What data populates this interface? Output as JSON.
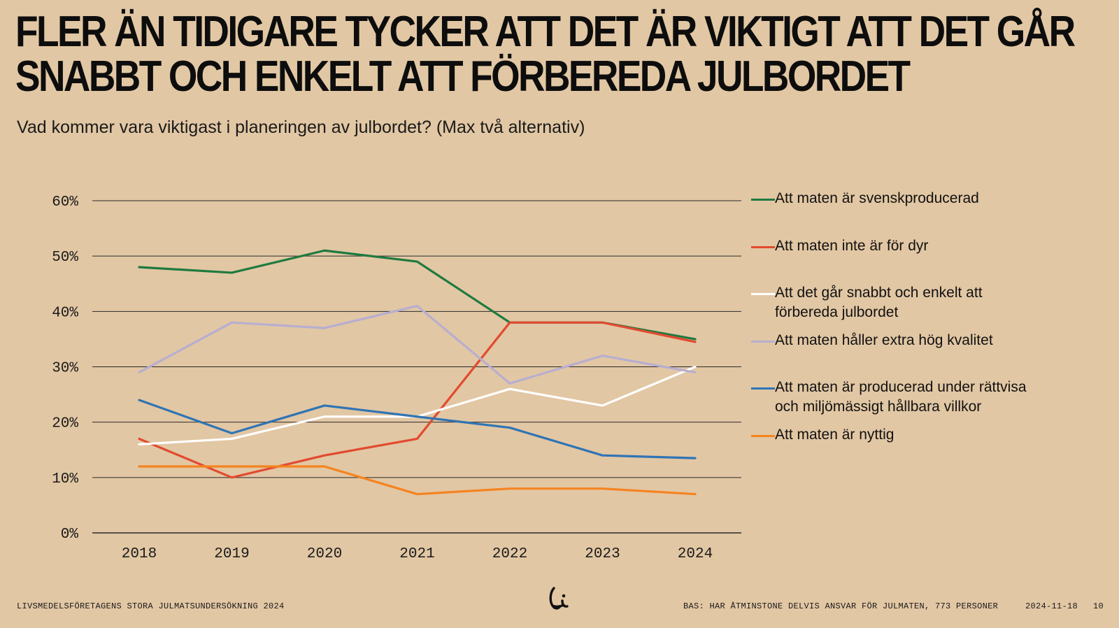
{
  "title_lines": [
    "FLER ÄN TIDIGARE TYCKER ATT DET ÄR VIKTIGT ATT DET GÅR",
    "SNABBT OCH ENKELT ATT FÖRBEREDA JULBORDET"
  ],
  "subtitle": "Vad kommer vara viktigast i planeringen av julbordet? (Max två alternativ)",
  "chart_data": {
    "type": "line",
    "x": [
      "2018",
      "2019",
      "2020",
      "2021",
      "2022",
      "2023",
      "2024"
    ],
    "ylim": [
      0,
      60
    ],
    "yticks": [
      "0%",
      "10%",
      "20%",
      "30%",
      "40%",
      "50%",
      "60%"
    ],
    "ytick_values": [
      0,
      10,
      20,
      30,
      40,
      50,
      60
    ],
    "grid": true,
    "legend_position": "right",
    "series": [
      {
        "name": "Att maten är svenskproducerad",
        "color": "#1f7a3f",
        "values": [
          48,
          47,
          51,
          49,
          38,
          38,
          35
        ]
      },
      {
        "name": "Att maten inte är för dyr",
        "color": "#e24a30",
        "values": [
          17,
          10,
          14,
          17,
          38,
          38,
          34.5
        ]
      },
      {
        "name": "Att det går snabbt och enkelt att förbereda julbordet",
        "color": "#ffffff",
        "values": [
          16,
          17,
          21,
          21,
          26,
          23,
          30
        ]
      },
      {
        "name": "Att maten håller extra hög kvalitet",
        "color": "#b7aed0",
        "values": [
          29,
          38,
          37,
          41,
          27,
          32,
          29
        ]
      },
      {
        "name": "Att maten är producerad under rättvisa och miljömässigt hållbara villkor",
        "color": "#2f74b5",
        "values": [
          24,
          18,
          23,
          21,
          19,
          14,
          13.5
        ]
      },
      {
        "name": "Att maten är nyttig",
        "color": "#f5831f",
        "values": [
          12,
          12,
          12,
          7,
          8,
          8,
          7
        ]
      }
    ]
  },
  "legend": [
    {
      "lines": [
        "Att maten är svenskproducerad"
      ],
      "color": "#1f7a3f"
    },
    {
      "lines": [
        "Att maten inte är för dyr"
      ],
      "color": "#e24a30"
    },
    {
      "lines": [
        "Att det går snabbt och enkelt att",
        "förbereda julbordet"
      ],
      "color": "#ffffff"
    },
    {
      "lines": [
        "Att maten håller extra hög kvalitet"
      ],
      "color": "#b7aed0"
    },
    {
      "lines": [
        "Att maten är producerad under rättvisa",
        "och miljömässigt hållbara villkor"
      ],
      "color": "#2f74b5"
    },
    {
      "lines": [
        "Att maten är nyttig"
      ],
      "color": "#f5831f"
    }
  ],
  "footer": {
    "left": "LIVSMEDELSFÖRETAGENS STORA JULMATSUNDERSÖKNING 2024",
    "base": "BAS: HAR ÅTMINSTONE DELVIS ANSVAR FÖR JULMATEN, 773 PERSONER",
    "date": "2024-11-18",
    "page": "10"
  },
  "logo_icon": "livsmedelsforetagen-logo-icon"
}
